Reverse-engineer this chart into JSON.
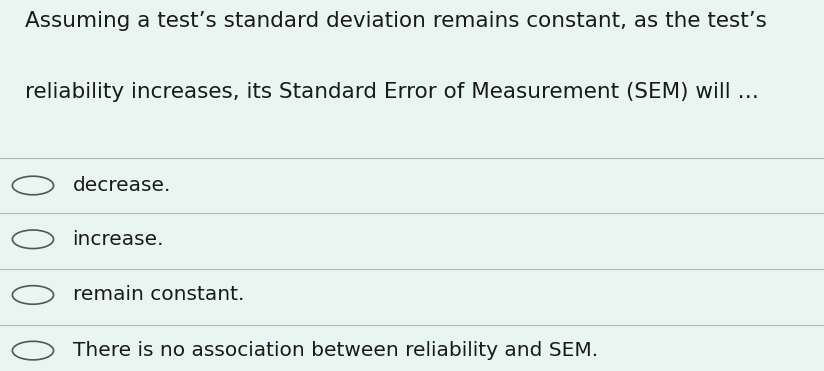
{
  "question_line1": "Assuming a test’s standard deviation remains constant, as the test’s",
  "question_line2": "reliability increases, its Standard Error of Measurement (SEM) will …",
  "options": [
    "decrease.",
    "increase.",
    "remain constant.",
    "There is no association between reliability and SEM."
  ],
  "bg_color": "#e8f5f0",
  "text_color": "#1a1a1a",
  "line_color": "#b0b8b4",
  "circle_color": "#555555",
  "question_fontsize": 15.5,
  "option_fontsize": 14.5,
  "fig_width": 8.24,
  "fig_height": 3.71,
  "dpi": 100
}
